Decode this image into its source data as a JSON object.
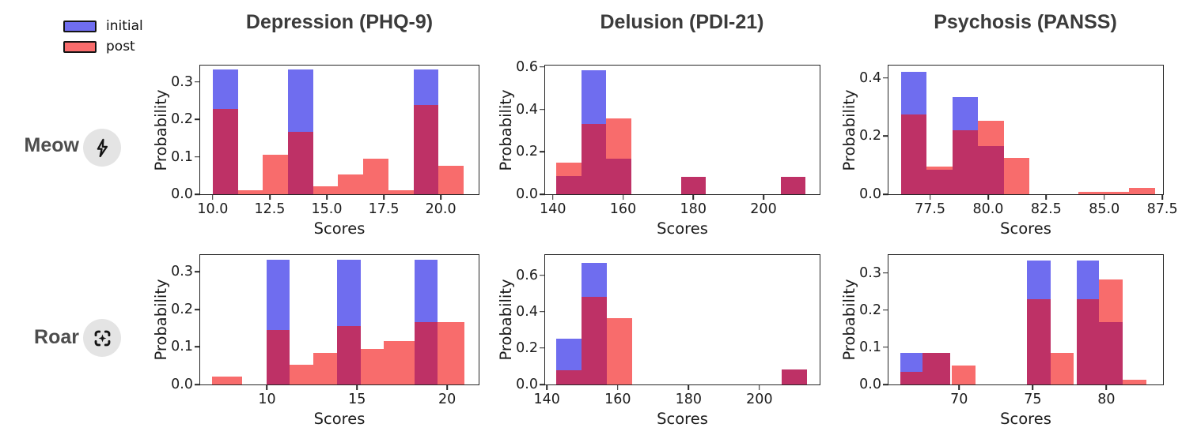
{
  "legend": {
    "items": [
      {
        "label": "initial",
        "color_hex_over_white": "#6b66ee"
      },
      {
        "label": "post",
        "color_hex_over_white": "#f56b6b"
      }
    ]
  },
  "rows": [
    {
      "label": "Meow",
      "icon": "lightning-icon"
    },
    {
      "label": "Roar",
      "icon": "scan-sparkle-icon"
    }
  ],
  "columns": [
    {
      "title": "Depression (PHQ-9)"
    },
    {
      "title": "Delusion (PDI-21)"
    },
    {
      "title": "Psychosis (PANSS)"
    }
  ],
  "series_colors": {
    "initial_fill": "rgba(15,12,228,0.60)",
    "post_fill": "rgba(243,10,10,0.60)",
    "overlap_appearance": "#bb2a66"
  },
  "chart_data": {
    "type": "bar",
    "subtype": "overlaid-probability-histograms",
    "grid": "2 rows (Meow, Roar) x 3 columns (Depression PHQ-9, Delusion PDI-21, Psychosis PANSS)",
    "legend_entries": [
      "initial",
      "post"
    ],
    "legend_position": "top-left",
    "bar_format": "[bin_start, bin_end, probability]",
    "plots": [
      {
        "row": "Meow",
        "column": "Depression (PHQ-9)",
        "xlabel": "Scores",
        "ylabel": "Probability",
        "xlim": [
          9.45,
          21.66
        ],
        "ylim": [
          0,
          0.344
        ],
        "xticks": [
          10.0,
          12.5,
          15.0,
          17.5,
          20.0
        ],
        "xtick_labels": [
          "10.0",
          "12.5",
          "15.0",
          "17.5",
          "20.0"
        ],
        "yticks": [
          0.0,
          0.1,
          0.2,
          0.3
        ],
        "ytick_labels": [
          "0.0",
          "0.1",
          "0.2",
          "0.3"
        ],
        "series": [
          {
            "name": "initial",
            "bars": [
              [
                10,
                11.1,
                0.333
              ],
              [
                13.3,
                14.4,
                0.333
              ],
              [
                18.8,
                19.9,
                0.333
              ]
            ]
          },
          {
            "name": "post",
            "bars": [
              [
                10,
                11.1,
                0.229
              ],
              [
                11.1,
                12.2,
                0.011
              ],
              [
                12.2,
                13.3,
                0.105
              ],
              [
                13.3,
                14.4,
                0.167
              ],
              [
                14.4,
                15.5,
                0.021
              ],
              [
                15.5,
                16.6,
                0.052
              ],
              [
                16.6,
                17.7,
                0.095
              ],
              [
                17.7,
                18.8,
                0.011
              ],
              [
                18.8,
                19.9,
                0.238
              ],
              [
                19.9,
                21.0,
                0.075
              ]
            ]
          }
        ]
      },
      {
        "row": "Meow",
        "column": "Delusion (PDI-21)",
        "xlabel": "Scores",
        "ylabel": "Probability",
        "xlim": [
          137.8,
          216.0
        ],
        "ylim": [
          0,
          0.607
        ],
        "xticks": [
          140,
          160,
          180,
          200
        ],
        "xtick_labels": [
          "140",
          "160",
          "180",
          "200"
        ],
        "yticks": [
          0.0,
          0.2,
          0.4,
          0.6
        ],
        "ytick_labels": [
          "0.0",
          "0.2",
          "0.4",
          "0.6"
        ],
        "series": [
          {
            "name": "initial",
            "bars": [
              [
                141,
                148.1,
                0.085
              ],
              [
                148.1,
                155.2,
                0.583
              ],
              [
                155.2,
                162.3,
                0.167
              ],
              [
                176.5,
                183.6,
                0.083
              ],
              [
                204.9,
                212.0,
                0.083
              ]
            ]
          },
          {
            "name": "post",
            "bars": [
              [
                141,
                148.1,
                0.148
              ],
              [
                148.1,
                155.2,
                0.333
              ],
              [
                155.2,
                162.3,
                0.358
              ],
              [
                176.5,
                183.6,
                0.083
              ],
              [
                204.9,
                212.0,
                0.083
              ]
            ]
          }
        ]
      },
      {
        "row": "Meow",
        "column": "Psychosis (PANSS)",
        "xlabel": "Scores",
        "ylabel": "Probability",
        "xlim": [
          75.71,
          87.53
        ],
        "ylim": [
          0,
          0.443
        ],
        "xticks": [
          77.5,
          80.0,
          82.5,
          85.0,
          87.5
        ],
        "xtick_labels": [
          "77.5",
          "80.0",
          "82.5",
          "85.0",
          "87.5"
        ],
        "yticks": [
          0.0,
          0.2,
          0.4
        ],
        "ytick_labels": [
          "0.0",
          "0.2",
          "0.4"
        ],
        "series": [
          {
            "name": "initial",
            "bars": [
              [
                76.25,
                77.35,
                0.42
              ],
              [
                77.35,
                78.46,
                0.085
              ],
              [
                78.46,
                79.56,
                0.335
              ],
              [
                79.56,
                80.67,
                0.165
              ]
            ]
          },
          {
            "name": "post",
            "bars": [
              [
                76.25,
                77.35,
                0.275
              ],
              [
                77.35,
                78.46,
                0.095
              ],
              [
                78.46,
                79.56,
                0.22
              ],
              [
                79.56,
                80.67,
                0.253
              ],
              [
                80.67,
                81.77,
                0.125
              ],
              [
                83.87,
                86.08,
                0.008
              ],
              [
                86.08,
                87.18,
                0.021
              ]
            ]
          }
        ]
      },
      {
        "row": "Roar",
        "column": "Depression (PHQ-9)",
        "xlabel": "Scores",
        "ylabel": "Probability",
        "xlim": [
          6.29,
          21.75
        ],
        "ylim": [
          0,
          0.345
        ],
        "xticks": [
          10,
          15,
          20
        ],
        "xtick_labels": [
          "10",
          "15",
          "20"
        ],
        "yticks": [
          0.0,
          0.1,
          0.2,
          0.3
        ],
        "ytick_labels": [
          "0.0",
          "0.1",
          "0.2",
          "0.3"
        ],
        "series": [
          {
            "name": "initial",
            "bars": [
              [
                10,
                11.25,
                0.333
              ],
              [
                13.9,
                15.2,
                0.333
              ],
              [
                18.2,
                19.45,
                0.333
              ]
            ]
          },
          {
            "name": "post",
            "bars": [
              [
                6.95,
                8.6,
                0.021
              ],
              [
                10,
                11.25,
                0.146
              ],
              [
                11.25,
                12.55,
                0.052
              ],
              [
                12.55,
                13.9,
                0.085
              ],
              [
                13.9,
                15.2,
                0.156
              ],
              [
                15.2,
                16.5,
                0.095
              ],
              [
                16.5,
                18.2,
                0.115
              ],
              [
                18.2,
                19.45,
                0.167
              ],
              [
                19.45,
                20.95,
                0.167
              ]
            ]
          }
        ]
      },
      {
        "row": "Roar",
        "column": "Delusion (PDI-21)",
        "xlabel": "Scores",
        "ylabel": "Probability",
        "xlim": [
          139.5,
          217.0
        ],
        "ylim": [
          0,
          0.711
        ],
        "xticks": [
          140,
          160,
          180,
          200
        ],
        "xtick_labels": [
          "140",
          "160",
          "180",
          "200"
        ],
        "yticks": [
          0.0,
          0.2,
          0.4,
          0.6
        ],
        "ytick_labels": [
          "0.0",
          "0.2",
          "0.4",
          "0.6"
        ],
        "series": [
          {
            "name": "initial",
            "bars": [
              [
                142.7,
                149.8,
                0.25
              ],
              [
                149.8,
                156.9,
                0.667
              ],
              [
                206.3,
                213.4,
                0.083
              ]
            ]
          },
          {
            "name": "post",
            "bars": [
              [
                142.7,
                149.8,
                0.08
              ],
              [
                149.8,
                156.9,
                0.483
              ],
              [
                156.9,
                164.0,
                0.364
              ],
              [
                206.3,
                213.4,
                0.083
              ]
            ]
          }
        ]
      },
      {
        "row": "Roar",
        "column": "Psychosis (PANSS)",
        "xlabel": "Scores",
        "ylabel": "Probability",
        "xlim": [
          65.2,
          83.85
        ],
        "ylim": [
          0,
          0.348
        ],
        "xticks": [
          70,
          75,
          80
        ],
        "xtick_labels": [
          "70",
          "75",
          "80"
        ],
        "yticks": [
          0.0,
          0.1,
          0.2,
          0.3
        ],
        "ytick_labels": [
          "0.0",
          "0.1",
          "0.2",
          "0.3"
        ],
        "series": [
          {
            "name": "initial",
            "bars": [
              [
                66.0,
                67.5,
                0.085
              ],
              [
                67.5,
                69.4,
                0.085
              ],
              [
                74.6,
                76.2,
                0.333
              ],
              [
                78.0,
                79.5,
                0.333
              ],
              [
                79.5,
                81.1,
                0.168
              ]
            ]
          },
          {
            "name": "post",
            "bars": [
              [
                66.0,
                67.5,
                0.034
              ],
              [
                67.5,
                69.4,
                0.085
              ],
              [
                69.5,
                71.1,
                0.052
              ],
              [
                74.6,
                76.2,
                0.229
              ],
              [
                76.2,
                77.8,
                0.085
              ],
              [
                78.0,
                79.5,
                0.229
              ],
              [
                79.5,
                81.1,
                0.283
              ],
              [
                81.1,
                82.7,
                0.012
              ]
            ]
          }
        ]
      }
    ]
  }
}
